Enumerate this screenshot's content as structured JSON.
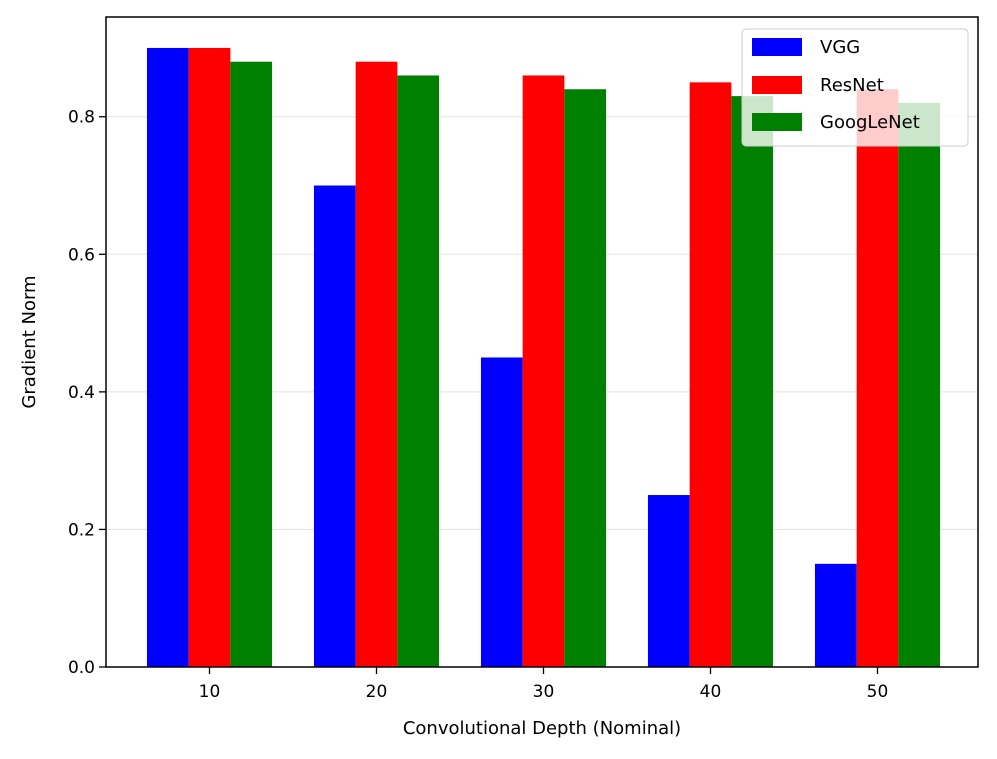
{
  "chart_data": {
    "type": "bar",
    "title": "",
    "xlabel": "Convolutional Depth (Nominal)",
    "ylabel": "Gradient Norm",
    "categories": [
      "10",
      "20",
      "30",
      "40",
      "50"
    ],
    "ylim": [
      0,
      0.945
    ],
    "yticks": [
      "0.0",
      "0.2",
      "0.4",
      "0.6",
      "0.8"
    ],
    "grid": "y",
    "legend_position": "top-right",
    "series": [
      {
        "name": "VGG",
        "color": "#0000ff",
        "values": [
          0.9,
          0.7,
          0.45,
          0.25,
          0.15
        ]
      },
      {
        "name": "ResNet",
        "color": "#ff0000",
        "values": [
          0.9,
          0.88,
          0.86,
          0.85,
          0.84
        ]
      },
      {
        "name": "GoogLeNet",
        "color": "#008000",
        "values": [
          0.88,
          0.86,
          0.84,
          0.83,
          0.82
        ]
      }
    ]
  }
}
